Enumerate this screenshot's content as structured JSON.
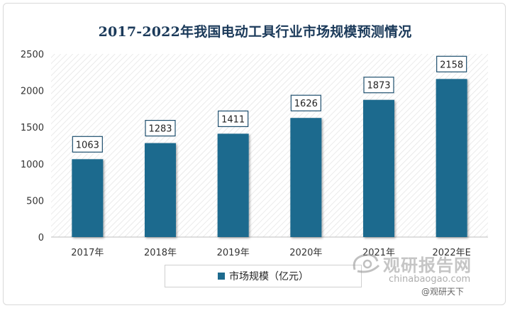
{
  "chart_data": {
    "type": "bar",
    "title": "2017-2022年我国电动工具行业市场规模预测情况",
    "categories": [
      "2017年",
      "2018年",
      "2019年",
      "2020年",
      "2021年",
      "2022年E"
    ],
    "series": [
      {
        "name": "市场规模（亿元）",
        "values": [
          1063,
          1283,
          1411,
          1626,
          1873,
          2158
        ]
      }
    ],
    "data_labels": [
      "1063",
      "1283",
      "1411",
      "1626",
      "1873",
      "2158"
    ],
    "ylim": [
      0,
      2500
    ],
    "yticks": [
      "0",
      "500",
      "1000",
      "1500",
      "2000",
      "2500"
    ],
    "grid": false,
    "background": "hatched",
    "legend_position": "bottom",
    "bar_color": "#1e6b8e"
  },
  "watermark": {
    "brand": "观研报告网",
    "url": "chinabaogao.com",
    "source": "@观研天下"
  }
}
